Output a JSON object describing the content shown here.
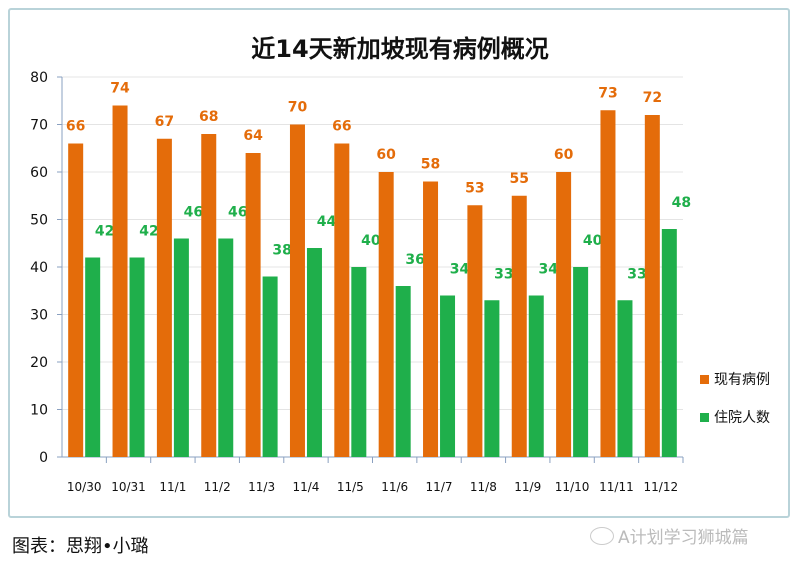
{
  "chart_data": {
    "type": "bar",
    "title": "近14天新加坡现有病例概况",
    "categories": [
      "10/30",
      "10/31",
      "11/1",
      "11/2",
      "11/3",
      "11/4",
      "11/5",
      "11/6",
      "11/7",
      "11/8",
      "11/9",
      "11/10",
      "11/11",
      "11/12"
    ],
    "series": [
      {
        "name": "现有病例",
        "color": "#E46C0A",
        "values": [
          66,
          74,
          67,
          68,
          64,
          70,
          66,
          60,
          58,
          53,
          55,
          60,
          73,
          72
        ]
      },
      {
        "name": "住院人数",
        "color": "#1FAF4B",
        "values": [
          42,
          42,
          46,
          46,
          38,
          44,
          40,
          36,
          34,
          33,
          34,
          40,
          33,
          48
        ]
      }
    ],
    "ylim": [
      0,
      80
    ],
    "yticks": [
      0,
      10,
      20,
      30,
      40,
      50,
      60,
      70,
      80
    ],
    "grid": true,
    "legend": "right",
    "data_labels": true
  },
  "caption": "图表：思翔•小璐",
  "watermark": "A计划学习狮城篇"
}
